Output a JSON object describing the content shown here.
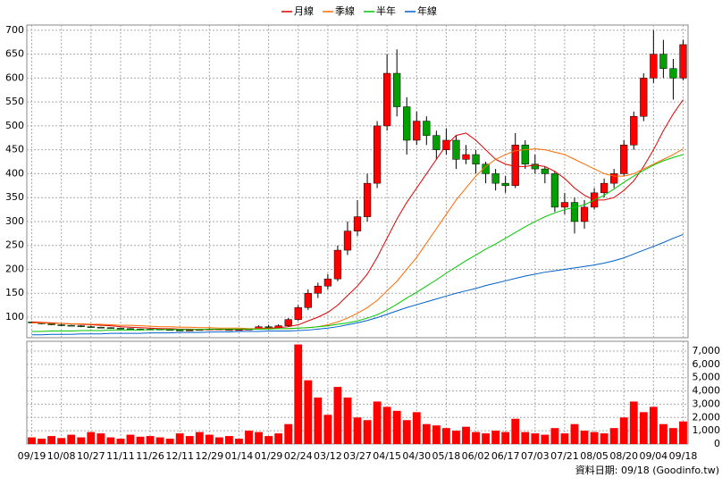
{
  "chart_data": {
    "type": "candlestick",
    "legend": {
      "position": "top"
    },
    "series": [
      {
        "name": "月線",
        "color": "#e00000",
        "values": [
          90,
          89,
          88,
          87,
          86,
          85,
          84,
          83,
          82,
          80,
          79,
          78,
          77,
          76,
          76,
          75,
          75,
          74,
          74,
          74,
          74,
          74,
          74,
          76,
          77,
          78,
          80,
          84,
          92,
          100,
          110,
          125,
          145,
          165,
          190,
          225,
          265,
          305,
          340,
          370,
          400,
          430,
          460,
          480,
          485,
          470,
          450,
          430,
          420,
          415,
          415,
          418,
          415,
          405,
          390,
          370,
          355,
          345,
          345,
          350,
          365,
          385,
          415,
          450,
          490,
          525,
          555
        ]
      },
      {
        "name": "季線",
        "color": "#ff6a00",
        "values": [
          88,
          88,
          87,
          87,
          86,
          86,
          85,
          85,
          84,
          83,
          83,
          82,
          81,
          80,
          80,
          79,
          79,
          78,
          78,
          77,
          77,
          77,
          76,
          76,
          76,
          76,
          76,
          77,
          78,
          80,
          84,
          90,
          98,
          108,
          120,
          135,
          155,
          175,
          200,
          225,
          255,
          285,
          315,
          345,
          370,
          395,
          415,
          430,
          440,
          448,
          450,
          452,
          450,
          445,
          440,
          430,
          420,
          410,
          400,
          395,
          395,
          400,
          410,
          420,
          430,
          440,
          452
        ]
      },
      {
        "name": "半年",
        "color": "#00c800",
        "values": [
          70,
          70,
          71,
          71,
          71,
          72,
          72,
          72,
          73,
          73,
          73,
          73,
          74,
          74,
          74,
          74,
          74,
          74,
          75,
          75,
          75,
          75,
          75,
          75,
          75,
          76,
          76,
          77,
          78,
          80,
          82,
          85,
          88,
          92,
          98,
          105,
          115,
          127,
          140,
          152,
          165,
          178,
          192,
          205,
          218,
          230,
          242,
          253,
          265,
          277,
          289,
          300,
          310,
          318,
          325,
          330,
          335,
          345,
          355,
          368,
          382,
          395,
          407,
          418,
          427,
          434,
          440
        ]
      },
      {
        "name": "年線",
        "color": "#0060c8",
        "values": [
          63,
          63,
          64,
          64,
          64,
          65,
          65,
          65,
          66,
          66,
          66,
          66,
          67,
          67,
          67,
          68,
          68,
          68,
          69,
          69,
          69,
          70,
          70,
          70,
          71,
          71,
          71,
          72,
          73,
          75,
          77,
          80,
          84,
          88,
          93,
          99,
          106,
          113,
          120,
          126,
          132,
          138,
          144,
          150,
          155,
          160,
          166,
          171,
          176,
          181,
          186,
          190,
          194,
          197,
          200,
          203,
          206,
          209,
          213,
          218,
          224,
          232,
          240,
          248,
          256,
          265,
          273
        ]
      }
    ],
    "up_color": "#ff0000",
    "down_color": "#00a000",
    "volume_color": "#ff0000",
    "categories": [
      "09/19",
      null,
      null,
      "10/08",
      null,
      null,
      "10/27",
      null,
      null,
      "11/11",
      null,
      null,
      "11/26",
      null,
      null,
      "12/11",
      null,
      null,
      "12/29",
      null,
      null,
      "01/14",
      null,
      null,
      "01/29",
      null,
      null,
      "02/24",
      null,
      null,
      "03/12",
      null,
      null,
      "03/27",
      null,
      null,
      "04/15",
      null,
      null,
      "04/30",
      null,
      null,
      "05/18",
      null,
      null,
      "06/02",
      null,
      null,
      "06/17",
      null,
      null,
      "07/03",
      null,
      null,
      "07/21",
      null,
      null,
      "08/05",
      null,
      null,
      "08/20",
      null,
      null,
      "09/04",
      null,
      null,
      "09/18"
    ],
    "ohlc": [
      [
        90,
        91,
        87,
        88
      ],
      [
        88,
        89,
        85,
        86
      ],
      [
        86,
        87,
        83,
        84
      ],
      [
        84,
        86,
        82,
        83
      ],
      [
        83,
        84,
        81,
        82
      ],
      [
        82,
        83,
        79,
        80
      ],
      [
        80,
        82,
        78,
        79
      ],
      [
        79,
        80,
        77,
        78
      ],
      [
        78,
        79,
        76,
        77
      ],
      [
        77,
        78,
        75,
        76
      ],
      [
        76,
        77,
        74,
        75
      ],
      [
        75,
        76,
        73,
        74
      ],
      [
        74,
        77,
        73,
        75
      ],
      [
        75,
        76,
        73,
        74
      ],
      [
        74,
        75,
        72,
        73
      ],
      [
        73,
        74,
        71,
        72
      ],
      [
        72,
        74,
        71,
        73
      ],
      [
        73,
        75,
        72,
        74
      ],
      [
        74,
        77,
        73,
        75
      ],
      [
        75,
        76,
        73,
        74
      ],
      [
        74,
        75,
        72,
        73
      ],
      [
        73,
        75,
        72,
        74
      ],
      [
        74,
        76,
        73,
        75
      ],
      [
        75,
        83,
        74,
        80
      ],
      [
        80,
        84,
        76,
        78
      ],
      [
        78,
        85,
        77,
        82
      ],
      [
        82,
        98,
        80,
        95
      ],
      [
        95,
        125,
        92,
        120
      ],
      [
        120,
        158,
        115,
        150
      ],
      [
        150,
        172,
        140,
        165
      ],
      [
        165,
        190,
        158,
        180
      ],
      [
        180,
        250,
        175,
        240
      ],
      [
        240,
        300,
        230,
        280
      ],
      [
        280,
        345,
        270,
        310
      ],
      [
        310,
        400,
        300,
        380
      ],
      [
        380,
        510,
        370,
        500
      ],
      [
        500,
        650,
        490,
        610
      ],
      [
        610,
        660,
        520,
        540
      ],
      [
        540,
        560,
        440,
        470
      ],
      [
        470,
        530,
        460,
        510
      ],
      [
        510,
        520,
        460,
        480
      ],
      [
        480,
        490,
        430,
        450
      ],
      [
        450,
        495,
        440,
        470
      ],
      [
        470,
        480,
        410,
        430
      ],
      [
        430,
        460,
        420,
        440
      ],
      [
        440,
        450,
        400,
        420
      ],
      [
        420,
        425,
        380,
        400
      ],
      [
        400,
        410,
        365,
        380
      ],
      [
        380,
        395,
        360,
        375
      ],
      [
        375,
        485,
        370,
        460
      ],
      [
        460,
        470,
        410,
        420
      ],
      [
        420,
        440,
        400,
        410
      ],
      [
        410,
        415,
        380,
        400
      ],
      [
        400,
        405,
        320,
        330
      ],
      [
        330,
        360,
        315,
        340
      ],
      [
        340,
        350,
        275,
        300
      ],
      [
        300,
        345,
        285,
        330
      ],
      [
        330,
        370,
        325,
        360
      ],
      [
        360,
        390,
        350,
        380
      ],
      [
        380,
        410,
        370,
        400
      ],
      [
        400,
        470,
        395,
        460
      ],
      [
        460,
        530,
        450,
        520
      ],
      [
        520,
        610,
        510,
        600
      ],
      [
        600,
        700,
        590,
        650
      ],
      [
        650,
        680,
        600,
        620
      ],
      [
        620,
        640,
        555,
        600
      ],
      [
        600,
        680,
        595,
        670
      ]
    ],
    "volume": [
      500,
      400,
      600,
      450,
      700,
      500,
      900,
      800,
      500,
      400,
      700,
      550,
      600,
      500,
      400,
      800,
      600,
      900,
      700,
      500,
      600,
      400,
      1000,
      900,
      600,
      800,
      1500,
      7500,
      4800,
      3500,
      2200,
      4300,
      3500,
      2000,
      1800,
      3200,
      2800,
      2500,
      1800,
      2400,
      1500,
      1400,
      1200,
      1000,
      1300,
      900,
      800,
      1000,
      900,
      1900,
      900,
      800,
      700,
      1200,
      800,
      1500,
      1000,
      900,
      800,
      1200,
      2000,
      3200,
      2400,
      2800,
      1500,
      1200,
      1700
    ],
    "ylim": [
      57,
      711
    ],
    "yticks": [
      100,
      150,
      200,
      250,
      300,
      350,
      400,
      450,
      500,
      550,
      600,
      650,
      700
    ],
    "y2lim": [
      0,
      7740
    ],
    "y2ticks": [
      0,
      {
        "value": 1000,
        "label": "1,000"
      },
      {
        "value": 2000,
        "label": "2,000"
      },
      {
        "value": 3000,
        "label": "3,000"
      },
      {
        "value": 4000,
        "label": "4,000"
      },
      {
        "value": 5000,
        "label": "5,000"
      },
      {
        "value": 6000,
        "label": "6,000"
      },
      {
        "value": 7000,
        "label": "7,000"
      }
    ],
    "grid": true,
    "footnote": "資料日期: 09/18 (Goodinfo.tw)"
  }
}
